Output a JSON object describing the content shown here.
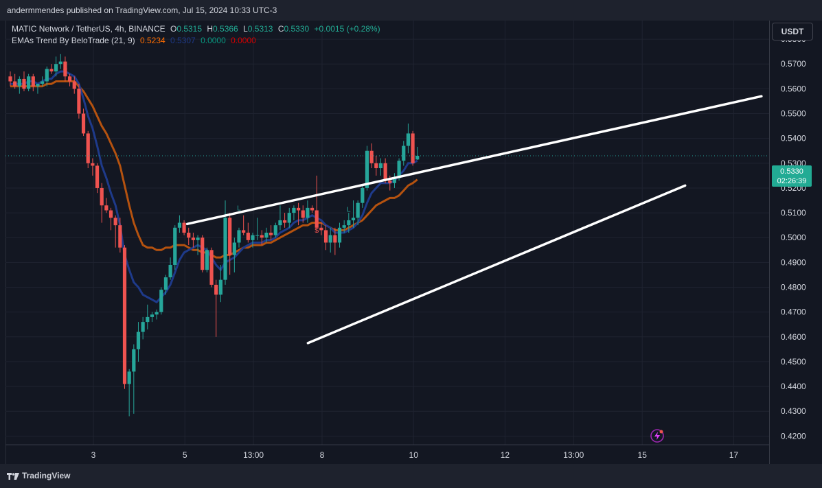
{
  "publisher": "andermmendes published on TradingView.com, Jul 15, 2024 10:33 UTC-3",
  "legend": {
    "symbol": "MATIC Network / TetherUS, 4h, BINANCE",
    "o_label": "O",
    "o_value": "0.5315",
    "h_label": "H",
    "h_value": "0.5366",
    "l_label": "L",
    "l_value": "0.5313",
    "c_label": "C",
    "c_value": "0.5330",
    "change": "+0.0015 (+0.28%)",
    "indicator": "EMAs Trend By BeloTrade (21, 9)",
    "ind_v1": "0.5234",
    "ind_v2": "0.5307",
    "ind_v3": "0.0000",
    "ind_v4": "0.0000"
  },
  "currency_button": "USDT",
  "price_tag": {
    "price": "0.5330",
    "countdown": "02:26:39"
  },
  "brand": "TradingView",
  "colors": {
    "bull": "#26a69a",
    "bear": "#ef5350",
    "ema_fast": "#1e3a8a",
    "ema_slow": "#b5520f",
    "trendline": "#ffffff",
    "background": "#131722",
    "grid": "#1f2330"
  },
  "chart_data": {
    "type": "candlestick",
    "y_ticks": [
      "0.5800",
      "0.5700",
      "0.5600",
      "0.5500",
      "0.5400",
      "0.5300",
      "0.5200",
      "0.5100",
      "0.5000",
      "0.4900",
      "0.4800",
      "0.4700",
      "0.4600",
      "0.4500",
      "0.4400",
      "0.4300",
      "0.4200"
    ],
    "ylim": [
      0.4165,
      0.5875
    ],
    "x_ticks": [
      "3",
      "5",
      "13:00",
      "8",
      "10",
      "12",
      "13:00",
      "15",
      "17"
    ],
    "last_price": 0.533,
    "candles": [
      [
        0.565,
        0.567,
        0.561,
        0.563
      ],
      [
        0.563,
        0.566,
        0.56,
        0.561
      ],
      [
        0.561,
        0.565,
        0.558,
        0.564
      ],
      [
        0.564,
        0.567,
        0.559,
        0.56
      ],
      [
        0.56,
        0.566,
        0.559,
        0.565
      ],
      [
        0.565,
        0.566,
        0.559,
        0.561
      ],
      [
        0.561,
        0.562,
        0.558,
        0.562
      ],
      [
        0.562,
        0.565,
        0.561,
        0.563
      ],
      [
        0.563,
        0.569,
        0.561,
        0.568
      ],
      [
        0.568,
        0.57,
        0.566,
        0.567
      ],
      [
        0.567,
        0.573,
        0.565,
        0.57
      ],
      [
        0.57,
        0.574,
        0.568,
        0.571
      ],
      [
        0.571,
        0.573,
        0.563,
        0.565
      ],
      [
        0.565,
        0.566,
        0.561,
        0.563
      ],
      [
        0.563,
        0.565,
        0.558,
        0.56
      ],
      [
        0.56,
        0.562,
        0.548,
        0.55
      ],
      [
        0.55,
        0.552,
        0.541,
        0.542
      ],
      [
        0.542,
        0.543,
        0.528,
        0.53
      ],
      [
        0.53,
        0.532,
        0.525,
        0.529
      ],
      [
        0.529,
        0.53,
        0.518,
        0.52
      ],
      [
        0.52,
        0.522,
        0.506,
        0.513
      ],
      [
        0.513,
        0.516,
        0.51,
        0.511
      ],
      [
        0.511,
        0.512,
        0.503,
        0.508
      ],
      [
        0.508,
        0.509,
        0.496,
        0.505
      ],
      [
        0.505,
        0.508,
        0.494,
        0.496
      ],
      [
        0.496,
        0.497,
        0.439,
        0.441
      ],
      [
        0.441,
        0.447,
        0.428,
        0.446
      ],
      [
        0.446,
        0.457,
        0.429,
        0.455
      ],
      [
        0.455,
        0.466,
        0.45,
        0.462
      ],
      [
        0.462,
        0.468,
        0.459,
        0.466
      ],
      [
        0.466,
        0.473,
        0.463,
        0.468
      ],
      [
        0.468,
        0.47,
        0.466,
        0.469
      ],
      [
        0.469,
        0.471,
        0.467,
        0.47
      ],
      [
        0.47,
        0.48,
        0.469,
        0.479
      ],
      [
        0.479,
        0.485,
        0.477,
        0.484
      ],
      [
        0.484,
        0.492,
        0.483,
        0.489
      ],
      [
        0.489,
        0.505,
        0.487,
        0.504
      ],
      [
        0.504,
        0.509,
        0.502,
        0.506
      ],
      [
        0.506,
        0.507,
        0.501,
        0.502
      ],
      [
        0.502,
        0.504,
        0.497,
        0.5
      ],
      [
        0.5,
        0.502,
        0.496,
        0.499
      ],
      [
        0.499,
        0.501,
        0.493,
        0.5
      ],
      [
        0.5,
        0.501,
        0.486,
        0.487
      ],
      [
        0.487,
        0.496,
        0.486,
        0.495
      ],
      [
        0.495,
        0.496,
        0.48,
        0.481
      ],
      [
        0.481,
        0.483,
        0.46,
        0.477
      ],
      [
        0.477,
        0.489,
        0.474,
        0.483
      ],
      [
        0.483,
        0.515,
        0.481,
        0.508
      ],
      [
        0.508,
        0.51,
        0.485,
        0.493
      ],
      [
        0.493,
        0.5,
        0.486,
        0.498
      ],
      [
        0.498,
        0.504,
        0.496,
        0.503
      ],
      [
        0.503,
        0.509,
        0.501,
        0.502
      ],
      [
        0.502,
        0.506,
        0.498,
        0.499
      ],
      [
        0.499,
        0.502,
        0.496,
        0.501
      ],
      [
        0.501,
        0.508,
        0.499,
        0.501
      ],
      [
        0.501,
        0.503,
        0.497,
        0.5
      ],
      [
        0.5,
        0.504,
        0.498,
        0.502
      ],
      [
        0.502,
        0.505,
        0.499,
        0.501
      ],
      [
        0.501,
        0.506,
        0.5,
        0.505
      ],
      [
        0.505,
        0.513,
        0.503,
        0.507
      ],
      [
        0.507,
        0.51,
        0.504,
        0.506
      ],
      [
        0.506,
        0.512,
        0.504,
        0.51
      ],
      [
        0.51,
        0.513,
        0.507,
        0.512
      ],
      [
        0.512,
        0.514,
        0.505,
        0.511
      ],
      [
        0.511,
        0.513,
        0.506,
        0.508
      ],
      [
        0.508,
        0.515,
        0.506,
        0.512
      ],
      [
        0.512,
        0.513,
        0.51,
        0.511
      ],
      [
        0.511,
        0.525,
        0.502,
        0.504
      ],
      [
        0.504,
        0.506,
        0.501,
        0.503
      ],
      [
        0.503,
        0.505,
        0.495,
        0.498
      ],
      [
        0.498,
        0.504,
        0.494,
        0.501
      ],
      [
        0.501,
        0.504,
        0.493,
        0.498
      ],
      [
        0.498,
        0.506,
        0.496,
        0.504
      ],
      [
        0.504,
        0.507,
        0.502,
        0.505
      ],
      [
        0.505,
        0.51,
        0.502,
        0.507
      ],
      [
        0.507,
        0.515,
        0.504,
        0.508
      ],
      [
        0.508,
        0.515,
        0.505,
        0.514
      ],
      [
        0.514,
        0.521,
        0.512,
        0.52
      ],
      [
        0.52,
        0.537,
        0.519,
        0.535
      ],
      [
        0.535,
        0.538,
        0.528,
        0.53
      ],
      [
        0.53,
        0.533,
        0.525,
        0.528
      ],
      [
        0.528,
        0.532,
        0.525,
        0.53
      ],
      [
        0.53,
        0.532,
        0.522,
        0.523
      ],
      [
        0.523,
        0.525,
        0.519,
        0.522
      ],
      [
        0.522,
        0.526,
        0.52,
        0.524
      ],
      [
        0.524,
        0.532,
        0.523,
        0.531
      ],
      [
        0.531,
        0.539,
        0.529,
        0.537
      ],
      [
        0.537,
        0.546,
        0.534,
        0.542
      ],
      [
        0.542,
        0.543,
        0.529,
        0.53
      ],
      [
        0.5315,
        0.5366,
        0.5313,
        0.533
      ]
    ],
    "ema_fast": [
      0.562,
      0.562,
      0.562,
      0.562,
      0.563,
      0.563,
      0.562,
      0.563,
      0.564,
      0.564,
      0.566,
      0.567,
      0.567,
      0.566,
      0.565,
      0.562,
      0.556,
      0.549,
      0.544,
      0.537,
      0.529,
      0.524,
      0.518,
      0.513,
      0.505,
      0.493,
      0.487,
      0.482,
      0.48,
      0.477,
      0.476,
      0.475,
      0.474,
      0.476,
      0.478,
      0.481,
      0.486,
      0.491,
      0.494,
      0.495,
      0.496,
      0.497,
      0.496,
      0.495,
      0.492,
      0.489,
      0.487,
      0.49,
      0.491,
      0.492,
      0.494,
      0.496,
      0.497,
      0.498,
      0.498,
      0.498,
      0.499,
      0.499,
      0.5,
      0.502,
      0.503,
      0.504,
      0.506,
      0.507,
      0.507,
      0.508,
      0.509,
      0.508,
      0.507,
      0.505,
      0.504,
      0.502,
      0.502,
      0.502,
      0.503,
      0.504,
      0.506,
      0.509,
      0.514,
      0.518,
      0.52,
      0.522,
      0.522,
      0.522,
      0.523,
      0.525,
      0.527,
      0.53,
      0.53,
      0.531
    ],
    "ema_slow": [
      0.561,
      0.561,
      0.561,
      0.561,
      0.561,
      0.561,
      0.561,
      0.561,
      0.562,
      0.562,
      0.563,
      0.563,
      0.563,
      0.563,
      0.563,
      0.561,
      0.559,
      0.556,
      0.553,
      0.549,
      0.545,
      0.542,
      0.538,
      0.534,
      0.529,
      0.521,
      0.513,
      0.506,
      0.501,
      0.497,
      0.496,
      0.496,
      0.495,
      0.495,
      0.496,
      0.496,
      0.497,
      0.497,
      0.497,
      0.496,
      0.495,
      0.495,
      0.494,
      0.494,
      0.493,
      0.492,
      0.492,
      0.493,
      0.493,
      0.494,
      0.495,
      0.496,
      0.496,
      0.497,
      0.497,
      0.497,
      0.498,
      0.498,
      0.499,
      0.5,
      0.501,
      0.502,
      0.503,
      0.504,
      0.505,
      0.505,
      0.506,
      0.506,
      0.506,
      0.505,
      0.504,
      0.503,
      0.503,
      0.503,
      0.504,
      0.505,
      0.506,
      0.507,
      0.509,
      0.511,
      0.513,
      0.514,
      0.515,
      0.516,
      0.516,
      0.517,
      0.519,
      0.521,
      0.522,
      0.5234
    ],
    "trendlines": [
      {
        "x0": 0.238,
        "y0": 0.5055,
        "x1": 0.99,
        "y1": 0.557
      },
      {
        "x0": 0.396,
        "y0": 0.4575,
        "x1": 0.89,
        "y1": 0.521
      }
    ],
    "markers": [
      {
        "label": "S",
        "index": 12,
        "price": 0.5675,
        "color": "#ef5350"
      },
      {
        "label": "L",
        "index": 50,
        "price": 0.511,
        "color": "#26a69a"
      },
      {
        "label": "S",
        "index": 67,
        "price": 0.502,
        "color": "#ef5350"
      },
      {
        "label": "L",
        "index": 74,
        "price": 0.5105,
        "color": "#26a69a"
      }
    ]
  }
}
